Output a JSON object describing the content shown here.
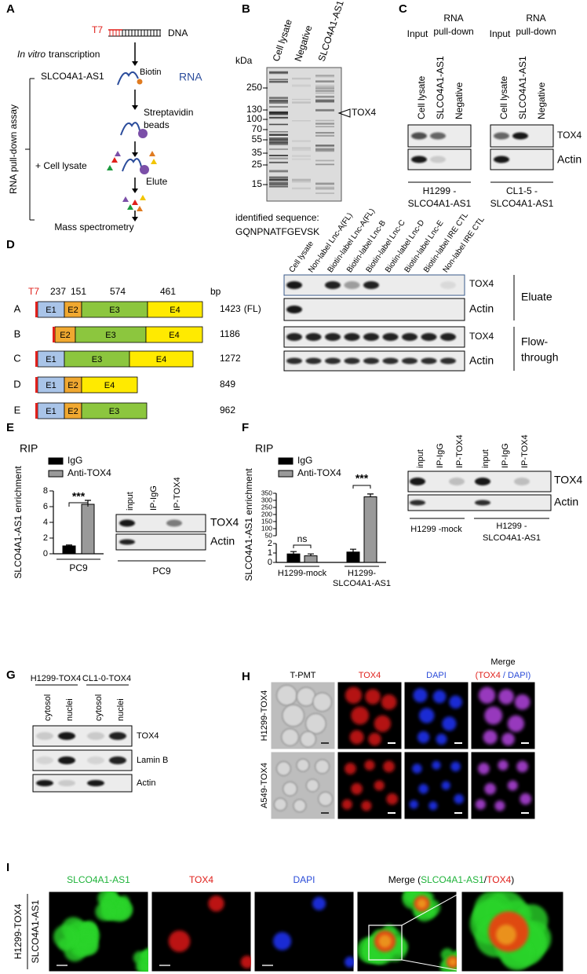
{
  "panels": {
    "a": {
      "label": "A",
      "t7": "T7",
      "dna": "DNA",
      "transcription_italic": "In vitro",
      "transcription": "transcription",
      "rna_name": "SLCO4A1-AS1",
      "biotin": "Biotin",
      "rna": "RNA",
      "beads": [
        "Streptavidin",
        "beads"
      ],
      "assay": "RNA pull-down assay",
      "lysate": "+ Cell lysate",
      "elute": "Elute",
      "ms": "Mass spectrometry"
    },
    "b": {
      "label": "B",
      "lanes": [
        "Cell lysate",
        "Negative",
        "SLCO4A1-AS1"
      ],
      "unit": "kDa",
      "markers": [
        250,
        130,
        100,
        70,
        55,
        35,
        25,
        15
      ],
      "band": "TOX4",
      "sequence_label": "identified sequence:",
      "sequence": "GQNPNATFGEVSK"
    },
    "c": {
      "label": "C",
      "groups": [
        {
          "input": "Input",
          "pulldown": [
            "RNA",
            "pull-down"
          ],
          "lanes": [
            "Cell lysate",
            "SLCO4A1-AS1",
            "Negative"
          ],
          "caption": [
            "H1299 -",
            "SLCO4A1-AS1"
          ]
        },
        {
          "input": "Input",
          "pulldown": [
            "RNA",
            "pull-down"
          ],
          "lanes": [
            "Cell lysate",
            "SLCO4A1-AS1",
            "Negative"
          ],
          "caption": [
            "CL1-5 -",
            "SLCO4A1-AS1"
          ]
        }
      ],
      "rows": [
        "TOX4",
        "Actin"
      ]
    },
    "d": {
      "label": "D",
      "t7": "T7",
      "exon_sizes": [
        237,
        151,
        574,
        461
      ],
      "unit": "bp",
      "constructs": [
        {
          "name": "A",
          "exons": [
            "E1",
            "E2",
            "E3",
            "E4"
          ],
          "length": 1423,
          "note": "(FL)"
        },
        {
          "name": "B",
          "exons": [
            "E2",
            "E3",
            "E4"
          ],
          "length": 1186
        },
        {
          "name": "C",
          "exons": [
            "E1",
            "E3",
            "E4"
          ],
          "length": 1272
        },
        {
          "name": "D",
          "exons": [
            "E1",
            "E2",
            "E4"
          ],
          "length": 849
        },
        {
          "name": "E",
          "exons": [
            "E1",
            "E2",
            "E3"
          ],
          "length": 962
        }
      ],
      "lanes": [
        "Cell lysate",
        "Non-label Lnc-A(FL)",
        "Biotin-label Lnc-A(FL)",
        "Biotin-label Lnc-B",
        "Biotin-label Lnc-C",
        "Biotin-label Lnc-D",
        "Biotin-label Lnc-E",
        "Biotin-label IRE CTL",
        "Non-label IRE CTL"
      ],
      "rows": [
        "TOX4",
        "Actin",
        "TOX4",
        "Actin"
      ],
      "groups": [
        [
          "Eluate"
        ],
        [
          "Flow-",
          "through"
        ]
      ]
    },
    "e": {
      "label": "E",
      "method": "RIP",
      "ylabel": "SLCO4A1-AS1 enrichment",
      "ylim": [
        0,
        8
      ],
      "yticks": [
        0,
        2,
        4,
        6,
        8
      ],
      "categories": [
        "PC9"
      ],
      "series": [
        {
          "name": "IgG",
          "color": "#000000",
          "values": [
            1.0
          ],
          "errors": [
            0.12
          ]
        },
        {
          "name": "Anti-TOX4",
          "color": "#9a9a9a",
          "values": [
            6.3
          ],
          "errors": [
            0.5
          ]
        }
      ],
      "significance": [
        "***"
      ],
      "blot": {
        "lanes": [
          "input",
          "IP-IgG",
          "IP-TOX4"
        ],
        "rows": [
          "TOX4",
          "Actin"
        ],
        "caption": "PC9"
      }
    },
    "f": {
      "label": "F",
      "method": "RIP",
      "ylabel": "SLCO4A1-AS1 enrichment",
      "ylim_lower": [
        0,
        2
      ],
      "yticks_lower": [
        0,
        1,
        2
      ],
      "ylim_upper": [
        50,
        350
      ],
      "yticks_upper": [
        50,
        100,
        150,
        200,
        250,
        300,
        350
      ],
      "categories": [
        [
          "H1299-mock"
        ],
        [
          "H1299-",
          "SLCO4A1-AS1"
        ]
      ],
      "series": [
        {
          "name": "IgG",
          "color": "#000000",
          "values": [
            0.9,
            1.1
          ],
          "errors": [
            0.25,
            0.3
          ]
        },
        {
          "name": "Anti-TOX4",
          "color": "#9a9a9a",
          "values": [
            0.7,
            325
          ],
          "errors": [
            0.2,
            20
          ]
        }
      ],
      "significance": [
        "ns",
        "***"
      ],
      "blot": {
        "lanes": [
          "input",
          "IP-IgG",
          "IP-TOX4",
          "input",
          "IP-IgG",
          "IP-TOX4"
        ],
        "rows": [
          "TOX4",
          "Actin"
        ],
        "captions": [
          [
            "H1299 -mock"
          ],
          [
            "H1299 -",
            "SLCO4A1-AS1"
          ]
        ]
      }
    },
    "g": {
      "label": "G",
      "groups": [
        {
          "name": "H1299-TOX4",
          "lanes": [
            "cytosol",
            "nuclei"
          ]
        },
        {
          "name": "CL1-0-TOX4",
          "lanes": [
            "cytosol",
            "nuclei"
          ]
        }
      ],
      "rows": [
        "TOX4",
        "Lamin B",
        "Actin"
      ]
    },
    "h": {
      "label": "H",
      "columns": [
        "T-PMT",
        "TOX4",
        "DAPI"
      ],
      "merge": {
        "title": "Merge",
        "parts": [
          "(TOX4",
          "/ DAPI)"
        ]
      },
      "rows": [
        "H1299-TOX4",
        "A549-TOX4"
      ]
    },
    "i": {
      "label": "I",
      "columns": [
        "SLCO4A1-AS1",
        "TOX4",
        "DAPI"
      ],
      "merge": [
        "Merge (",
        "SLCO4A1-AS1",
        "/",
        "TOX4",
        ")"
      ],
      "rows": [
        "H1299-TOX4",
        "SLCO4A1-AS1"
      ]
    }
  }
}
